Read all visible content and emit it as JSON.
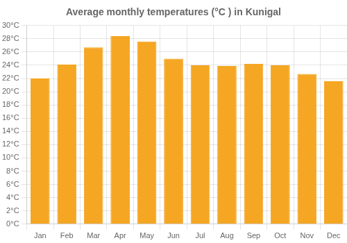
{
  "chart_data": {
    "type": "bar",
    "title": "Average monthly temperatures (°C ) in Kunigal",
    "categories": [
      "Jan",
      "Feb",
      "Mar",
      "Apr",
      "May",
      "Jun",
      "Jul",
      "Aug",
      "Sep",
      "Oct",
      "Nov",
      "Dec"
    ],
    "values": [
      22.0,
      24.1,
      26.7,
      28.4,
      27.6,
      25.0,
      24.0,
      23.9,
      24.2,
      24.0,
      22.7,
      21.6
    ],
    "color": "#F5A623",
    "ylim": [
      0,
      30
    ],
    "yticks": [
      {
        "value": 0,
        "label": "0°C"
      },
      {
        "value": 2,
        "label": "2°C"
      },
      {
        "value": 4,
        "label": "4°C"
      },
      {
        "value": 6,
        "label": "6°C"
      },
      {
        "value": 8,
        "label": "8°C"
      },
      {
        "value": 10,
        "label": "10°C"
      },
      {
        "value": 12,
        "label": "12°C"
      },
      {
        "value": 14,
        "label": "14°C"
      },
      {
        "value": 16,
        "label": "16°C"
      },
      {
        "value": 18,
        "label": "18°C"
      },
      {
        "value": 20,
        "label": "20°C"
      },
      {
        "value": 22,
        "label": "22°C"
      },
      {
        "value": 24,
        "label": "24°C"
      },
      {
        "value": 26,
        "label": "26°C"
      },
      {
        "value": 28,
        "label": "28°C"
      },
      {
        "value": 30,
        "label": "30°C"
      }
    ],
    "grid": true
  }
}
